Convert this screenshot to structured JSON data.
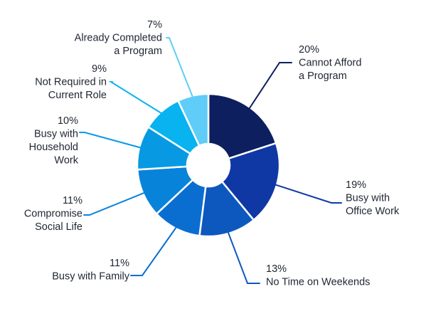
{
  "chart_data": {
    "type": "pie",
    "variant": "donut",
    "title": "",
    "total_percent": 100,
    "slices": [
      {
        "key": "cannot-afford",
        "value": 20,
        "label_value": "20%",
        "label_lines": [
          "Cannot Afford",
          "a Program"
        ],
        "color": "#0d1f5e"
      },
      {
        "key": "office-work",
        "value": 19,
        "label_value": "19%",
        "label_lines": [
          "Busy with",
          "Office Work"
        ],
        "color": "#0f38a5"
      },
      {
        "key": "no-time-weekends",
        "value": 13,
        "label_value": "13%",
        "label_lines": [
          "No Time on Weekends"
        ],
        "color": "#0d58bf"
      },
      {
        "key": "busy-family",
        "value": 11,
        "label_value": "11%",
        "label_lines": [
          "Busy with Family"
        ],
        "color": "#0a6ed1"
      },
      {
        "key": "social-life",
        "value": 11,
        "label_value": "11%",
        "label_lines": [
          "Compromise",
          "Social Life"
        ],
        "color": "#0883da"
      },
      {
        "key": "household-work",
        "value": 10,
        "label_value": "10%",
        "label_lines": [
          "Busy with",
          "Household",
          "Work"
        ],
        "color": "#079ae2"
      },
      {
        "key": "not-required",
        "value": 9,
        "label_value": "9%",
        "label_lines": [
          "Not Required in",
          "Current Role"
        ],
        "color": "#08b3ef"
      },
      {
        "key": "already-completed",
        "value": 7,
        "label_value": "7%",
        "label_lines": [
          "Already Completed",
          "a Program"
        ],
        "color": "#5fcdf7"
      }
    ]
  }
}
